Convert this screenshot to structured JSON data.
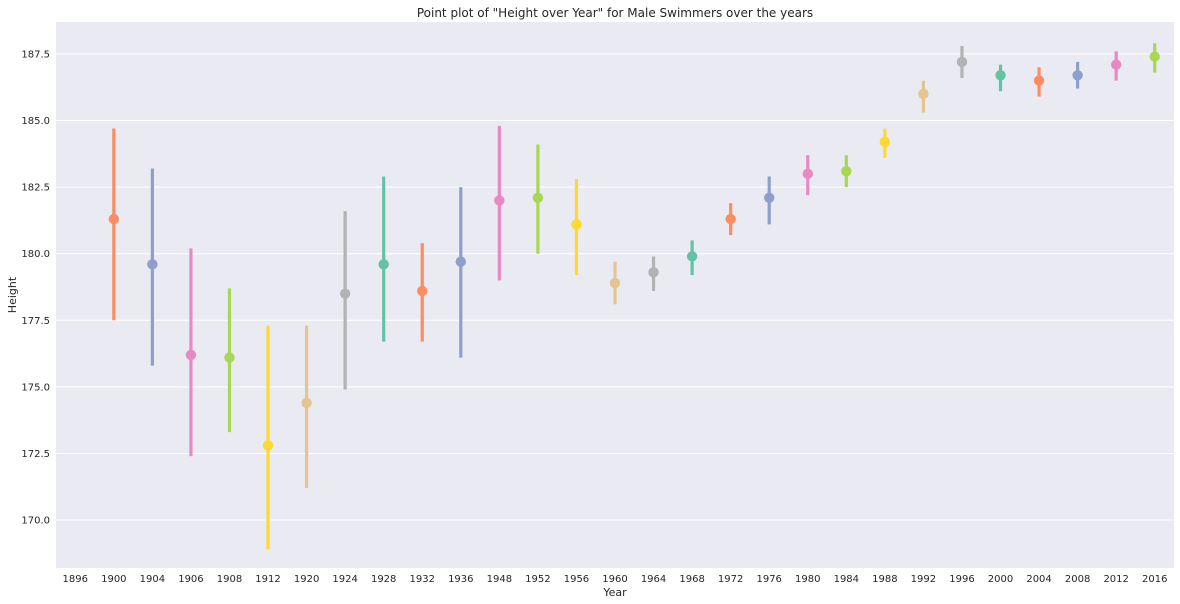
{
  "chart_data": {
    "type": "pointplot",
    "title": "Point plot of \"Height over Year\" for Male Swimmers over the years",
    "xlabel": "Year",
    "ylabel": "Height",
    "categories": [
      "1896",
      "1900",
      "1904",
      "1906",
      "1908",
      "1912",
      "1920",
      "1924",
      "1928",
      "1932",
      "1936",
      "1948",
      "1952",
      "1956",
      "1960",
      "1964",
      "1968",
      "1972",
      "1976",
      "1980",
      "1984",
      "1988",
      "1992",
      "1996",
      "2000",
      "2004",
      "2008",
      "2012",
      "2016"
    ],
    "values": [
      null,
      181.3,
      179.6,
      176.2,
      176.1,
      172.8,
      174.4,
      178.5,
      179.6,
      178.6,
      179.7,
      182.0,
      182.1,
      181.1,
      178.9,
      179.3,
      179.9,
      181.3,
      182.1,
      183.0,
      183.1,
      184.2,
      186.0,
      187.2,
      186.7,
      186.5,
      186.7,
      187.1,
      187.4
    ],
    "ci_low": [
      null,
      177.5,
      175.8,
      172.4,
      173.3,
      168.9,
      171.2,
      174.9,
      176.7,
      176.7,
      176.1,
      179.0,
      180.0,
      179.2,
      178.1,
      178.6,
      179.2,
      180.7,
      181.1,
      182.2,
      182.5,
      183.6,
      185.3,
      186.6,
      186.1,
      185.9,
      186.2,
      186.5,
      186.8
    ],
    "ci_high": [
      null,
      184.7,
      183.2,
      180.2,
      178.7,
      177.3,
      177.3,
      181.6,
      182.9,
      180.4,
      182.5,
      184.8,
      184.1,
      182.8,
      179.7,
      179.9,
      180.5,
      181.9,
      182.9,
      183.7,
      183.7,
      184.7,
      186.5,
      187.8,
      187.1,
      187.0,
      187.2,
      187.6,
      187.9
    ],
    "colors": [
      "#66c2a5",
      "#fc8d62",
      "#8da0cb",
      "#e78ac3",
      "#a6d854",
      "#ffd92f",
      "#e5c494",
      "#b3b3b3",
      "#66c2a5",
      "#fc8d62",
      "#8da0cb",
      "#e78ac3",
      "#a6d854",
      "#ffd92f",
      "#e5c494",
      "#b3b3b3",
      "#66c2a5",
      "#fc8d62",
      "#8da0cb",
      "#e78ac3",
      "#a6d854",
      "#ffd92f",
      "#e5c494",
      "#b3b3b3",
      "#66c2a5",
      "#fc8d62",
      "#8da0cb",
      "#e78ac3",
      "#a6d854"
    ],
    "yticks": [
      "170.0",
      "172.5",
      "175.0",
      "177.5",
      "180.0",
      "182.5",
      "185.0",
      "187.5"
    ],
    "ylim": [
      168.2,
      188.7
    ],
    "grid": true,
    "background": "#eaeaf2"
  }
}
